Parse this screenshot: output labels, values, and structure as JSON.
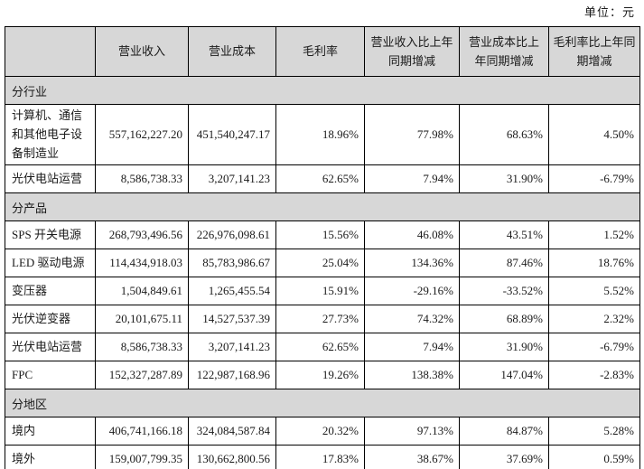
{
  "unit_label": "单位：元",
  "colors": {
    "header_bg": "#d7d7d7",
    "section_bg": "#d7d7d7",
    "border": "#000000",
    "text": "#1a1a1a"
  },
  "table": {
    "columns": [
      "",
      "营业收入",
      "营业成本",
      "毛利率",
      "营业收入比上年同期增减",
      "营业成本比上年同期增减",
      "毛利率比上年同期增减"
    ],
    "rows": [
      {
        "type": "section",
        "label": "分行业"
      },
      {
        "type": "data",
        "label": "计算机、通信和其他电子设备制造业",
        "values": [
          "557,162,227.20",
          "451,540,247.17",
          "18.96%",
          "77.98%",
          "68.63%",
          "4.50%"
        ]
      },
      {
        "type": "data",
        "label": "光伏电站运营",
        "values": [
          "8,586,738.33",
          "3,207,141.23",
          "62.65%",
          "7.94%",
          "31.90%",
          "-6.79%"
        ]
      },
      {
        "type": "section",
        "label": "分产品"
      },
      {
        "type": "data",
        "label": "SPS 开关电源",
        "values": [
          "268,793,496.56",
          "226,976,098.61",
          "15.56%",
          "46.08%",
          "43.51%",
          "1.52%"
        ]
      },
      {
        "type": "data",
        "label": "LED 驱动电源",
        "values": [
          "114,434,918.03",
          "85,783,986.67",
          "25.04%",
          "134.36%",
          "87.46%",
          "18.76%"
        ]
      },
      {
        "type": "data",
        "label": "变压器",
        "values": [
          "1,504,849.61",
          "1,265,455.54",
          "15.91%",
          "-29.16%",
          "-33.52%",
          "5.52%"
        ]
      },
      {
        "type": "data",
        "label": "光伏逆变器",
        "values": [
          "20,101,675.11",
          "14,527,537.39",
          "27.73%",
          "74.32%",
          "68.89%",
          "2.32%"
        ]
      },
      {
        "type": "data",
        "label": "光伏电站运营",
        "values": [
          "8,586,738.33",
          "3,207,141.23",
          "62.65%",
          "7.94%",
          "31.90%",
          "-6.79%"
        ]
      },
      {
        "type": "data",
        "label": "FPC",
        "values": [
          "152,327,287.89",
          "122,987,168.96",
          "19.26%",
          "138.38%",
          "147.04%",
          "-2.83%"
        ]
      },
      {
        "type": "section",
        "label": "分地区"
      },
      {
        "type": "data",
        "label": "境内",
        "values": [
          "406,741,166.18",
          "324,084,587.84",
          "20.32%",
          "97.13%",
          "84.87%",
          "5.28%"
        ]
      },
      {
        "type": "data",
        "label": "境外",
        "values": [
          "159,007,799.35",
          "130,662,800.56",
          "17.83%",
          "38.67%",
          "37.69%",
          "0.59%"
        ]
      }
    ]
  }
}
